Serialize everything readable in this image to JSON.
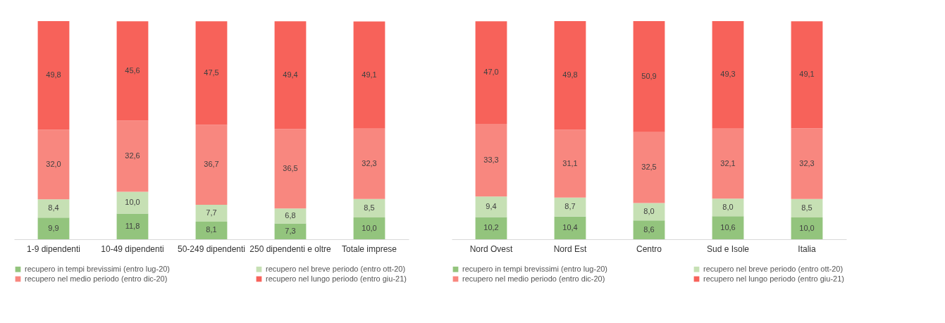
{
  "chart_data": [
    {
      "type": "bar",
      "stacked": true,
      "grid": false,
      "legend": "bottom",
      "categories": [
        "1-9 dipendenti",
        "10-49 dipendenti",
        "50-249 dipendenti",
        "250 dipendenti e oltre",
        "Totale imprese"
      ],
      "series": [
        {
          "name": "recupero in tempi brevissimi (entro lug-20)",
          "color": "#93c47d",
          "values": [
            9.9,
            11.8,
            8.1,
            7.3,
            10.0
          ],
          "value_labels": [
            "9,9",
            "11,8",
            "8,1",
            "7,3",
            "10,0"
          ]
        },
        {
          "name": "recupero nel breve periodo (entro ott-20)",
          "color": "#c6e0b4",
          "values": [
            8.4,
            10.0,
            7.7,
            6.8,
            8.5
          ],
          "value_labels": [
            "8,4",
            "10,0",
            "7,7",
            "6,8",
            "8,5"
          ]
        },
        {
          "name": "recupero nel medio periodo (entro dic-20)",
          "color": "#f8877f",
          "values": [
            32.0,
            32.6,
            36.7,
            36.5,
            32.3
          ],
          "value_labels": [
            "32,0",
            "32,6",
            "36,7",
            "36,5",
            "32,3"
          ]
        },
        {
          "name": "recupero nel lungo periodo  (entro giu-21)",
          "color": "#f7625a",
          "values": [
            49.8,
            45.6,
            47.5,
            49.4,
            49.1
          ],
          "value_labels": [
            "49,8",
            "45,6",
            "47,5",
            "49,4",
            "49,1"
          ]
        }
      ]
    },
    {
      "type": "bar",
      "stacked": true,
      "grid": false,
      "legend": "bottom",
      "categories": [
        "Nord Ovest",
        "Nord Est",
        "Centro",
        "Sud e Isole",
        "Italia"
      ],
      "series": [
        {
          "name": "recupero in tempi brevissimi (entro lug-20)",
          "color": "#93c47d",
          "values": [
            10.2,
            10.4,
            8.6,
            10.6,
            10.0
          ],
          "value_labels": [
            "10,2",
            "10,4",
            "8,6",
            "10,6",
            "10,0"
          ]
        },
        {
          "name": "recupero nel breve periodo (entro ott-20)",
          "color": "#c6e0b4",
          "values": [
            9.4,
            8.7,
            8.0,
            8.0,
            8.5
          ],
          "value_labels": [
            "9,4",
            "8,7",
            "8,0",
            "8,0",
            "8,5"
          ]
        },
        {
          "name": "recupero nel medio periodo (entro dic-20)",
          "color": "#f8877f",
          "values": [
            33.3,
            31.1,
            32.5,
            32.1,
            32.3
          ],
          "value_labels": [
            "33,3",
            "31,1",
            "32,5",
            "32,1",
            "32,3"
          ]
        },
        {
          "name": "recupero nel lungo periodo  (entro giu-21)",
          "color": "#f7625a",
          "values": [
            47.0,
            49.8,
            50.9,
            49.3,
            49.1
          ],
          "value_labels": [
            "47,0",
            "49,8",
            "50,9",
            "49,3",
            "49,1"
          ]
        }
      ]
    }
  ]
}
